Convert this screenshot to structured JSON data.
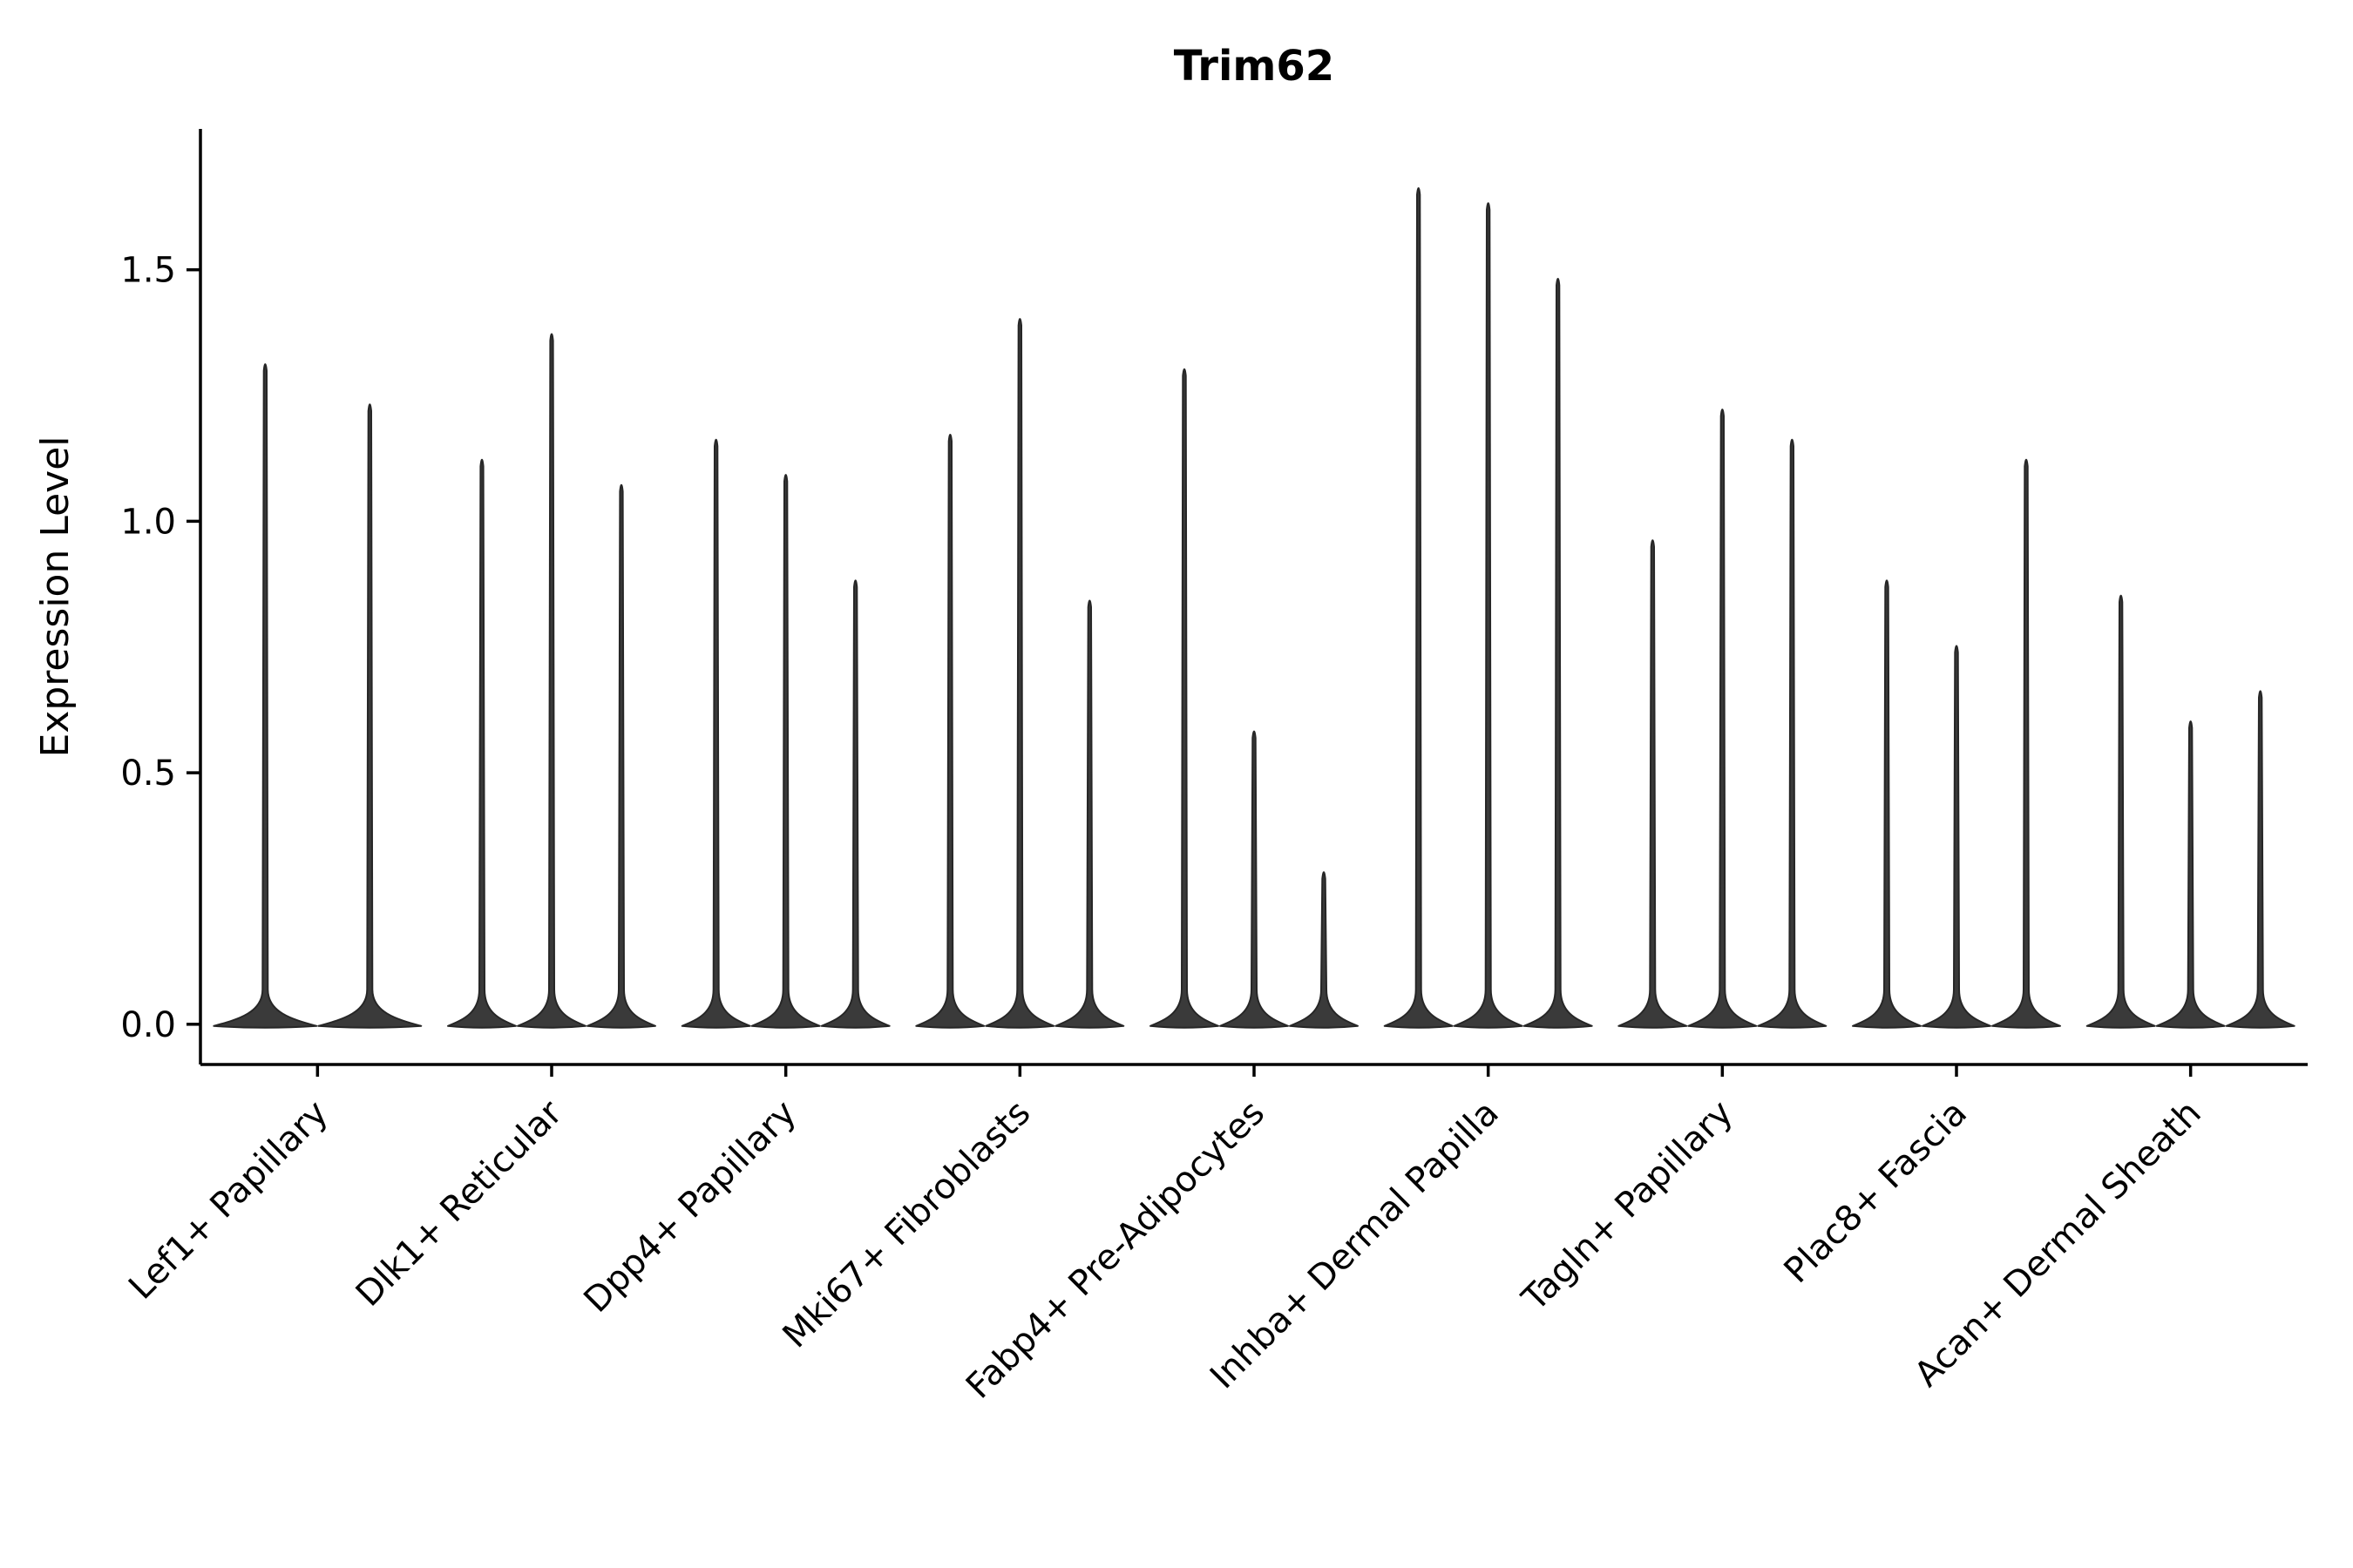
{
  "chart_data": {
    "type": "violin",
    "title": "Trim62",
    "xlabel": "",
    "ylabel": "Expression Level",
    "grid": false,
    "legend": "none",
    "axis_color": "#000000",
    "violin_fill": "#3a3a3a",
    "violin_edge": "#262626",
    "yticks": [
      0.0,
      0.5,
      1.0,
      1.5
    ],
    "ytick_labels": [
      "0.0",
      "0.5",
      "1.0",
      "1.5"
    ],
    "ylim": [
      -0.08,
      1.78
    ],
    "categories": [
      "Lef1+ Papillary",
      "Dlk1+ Reticular",
      "Dpp4+ Papillary",
      "Mki67+ Fibroblasts",
      "Fabp4+ Pre-Adipocytes",
      "Inhba+ Dermal Papilla",
      "Tagln+ Papillary",
      "Plac8+ Fascia",
      "Acan+ Dermal Sheath"
    ],
    "violin_max_expression_per_category": [
      [
        1.32,
        1.24
      ],
      [
        1.13,
        1.38,
        1.08
      ],
      [
        1.17,
        1.1,
        0.89
      ],
      [
        1.18,
        1.41,
        0.85
      ],
      [
        1.31,
        0.59,
        0.31
      ],
      [
        1.67,
        1.64,
        1.49
      ],
      [
        0.97,
        1.23,
        1.17
      ],
      [
        0.89,
        0.76,
        1.13
      ],
      [
        0.86,
        0.61,
        0.67
      ]
    ],
    "note_all_violins_base_at": 0.0
  }
}
